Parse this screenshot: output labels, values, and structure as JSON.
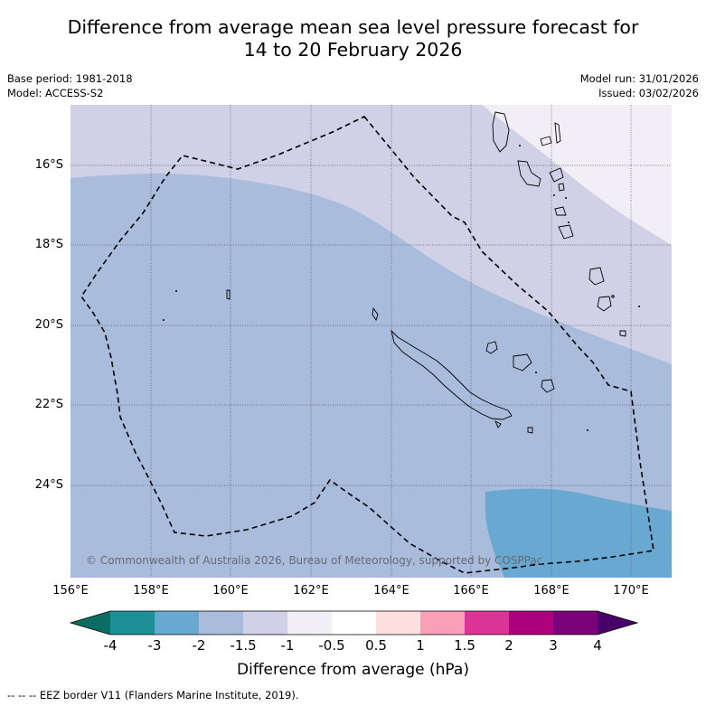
{
  "title_line1": "Difference from average mean sea level pressure forecast for",
  "title_line2": "14 to 20 February 2026",
  "meta_left": {
    "base_period": "Base period: 1981-2018",
    "model": "Model: ACCESS-S2"
  },
  "meta_right": {
    "model_run": "Model run: 31/01/2026",
    "issued": "Issued: 03/02/2026"
  },
  "copyright": "© Commonwealth of Australia 2026, Bureau of Meteorology, supported by COSPPac",
  "lat_labels": [
    "16°S",
    "18°S",
    "20°S",
    "22°S",
    "24°S"
  ],
  "lon_labels": [
    "156°E",
    "158°E",
    "160°E",
    "162°E",
    "164°E",
    "166°E",
    "168°E",
    "170°E"
  ],
  "colorbar": {
    "tick_labels": [
      "-4",
      "-3",
      "-2",
      "-1.5",
      "-1",
      "-0.5",
      "0.5",
      "1",
      "1.5",
      "2",
      "3",
      "4"
    ],
    "colors": {
      "below_-4": "#0b6d62",
      "-4_to_-3": "#1f8f97",
      "-3_to_-2": "#69a9d1",
      "-2_to_-1.5": "#a9bcdc",
      "-1.5_to_-1": "#d0d1e6",
      "-1_to_-0.5": "#f2eef5",
      "-0.5_to_0.5": "#ffffff",
      "0.5_to_1": "#fde0dd",
      "1_to_1.5": "#f99fb8",
      "1.5_to_2": "#dd3597",
      "2_to_3": "#ae017e",
      "3_to_4": "#7a0177",
      "above_4": "#49006a"
    },
    "title": "Difference from average (hPa)"
  },
  "footnote": "--  --  -- EEZ border V11 (Flanders Marine Institute, 2019)."
}
